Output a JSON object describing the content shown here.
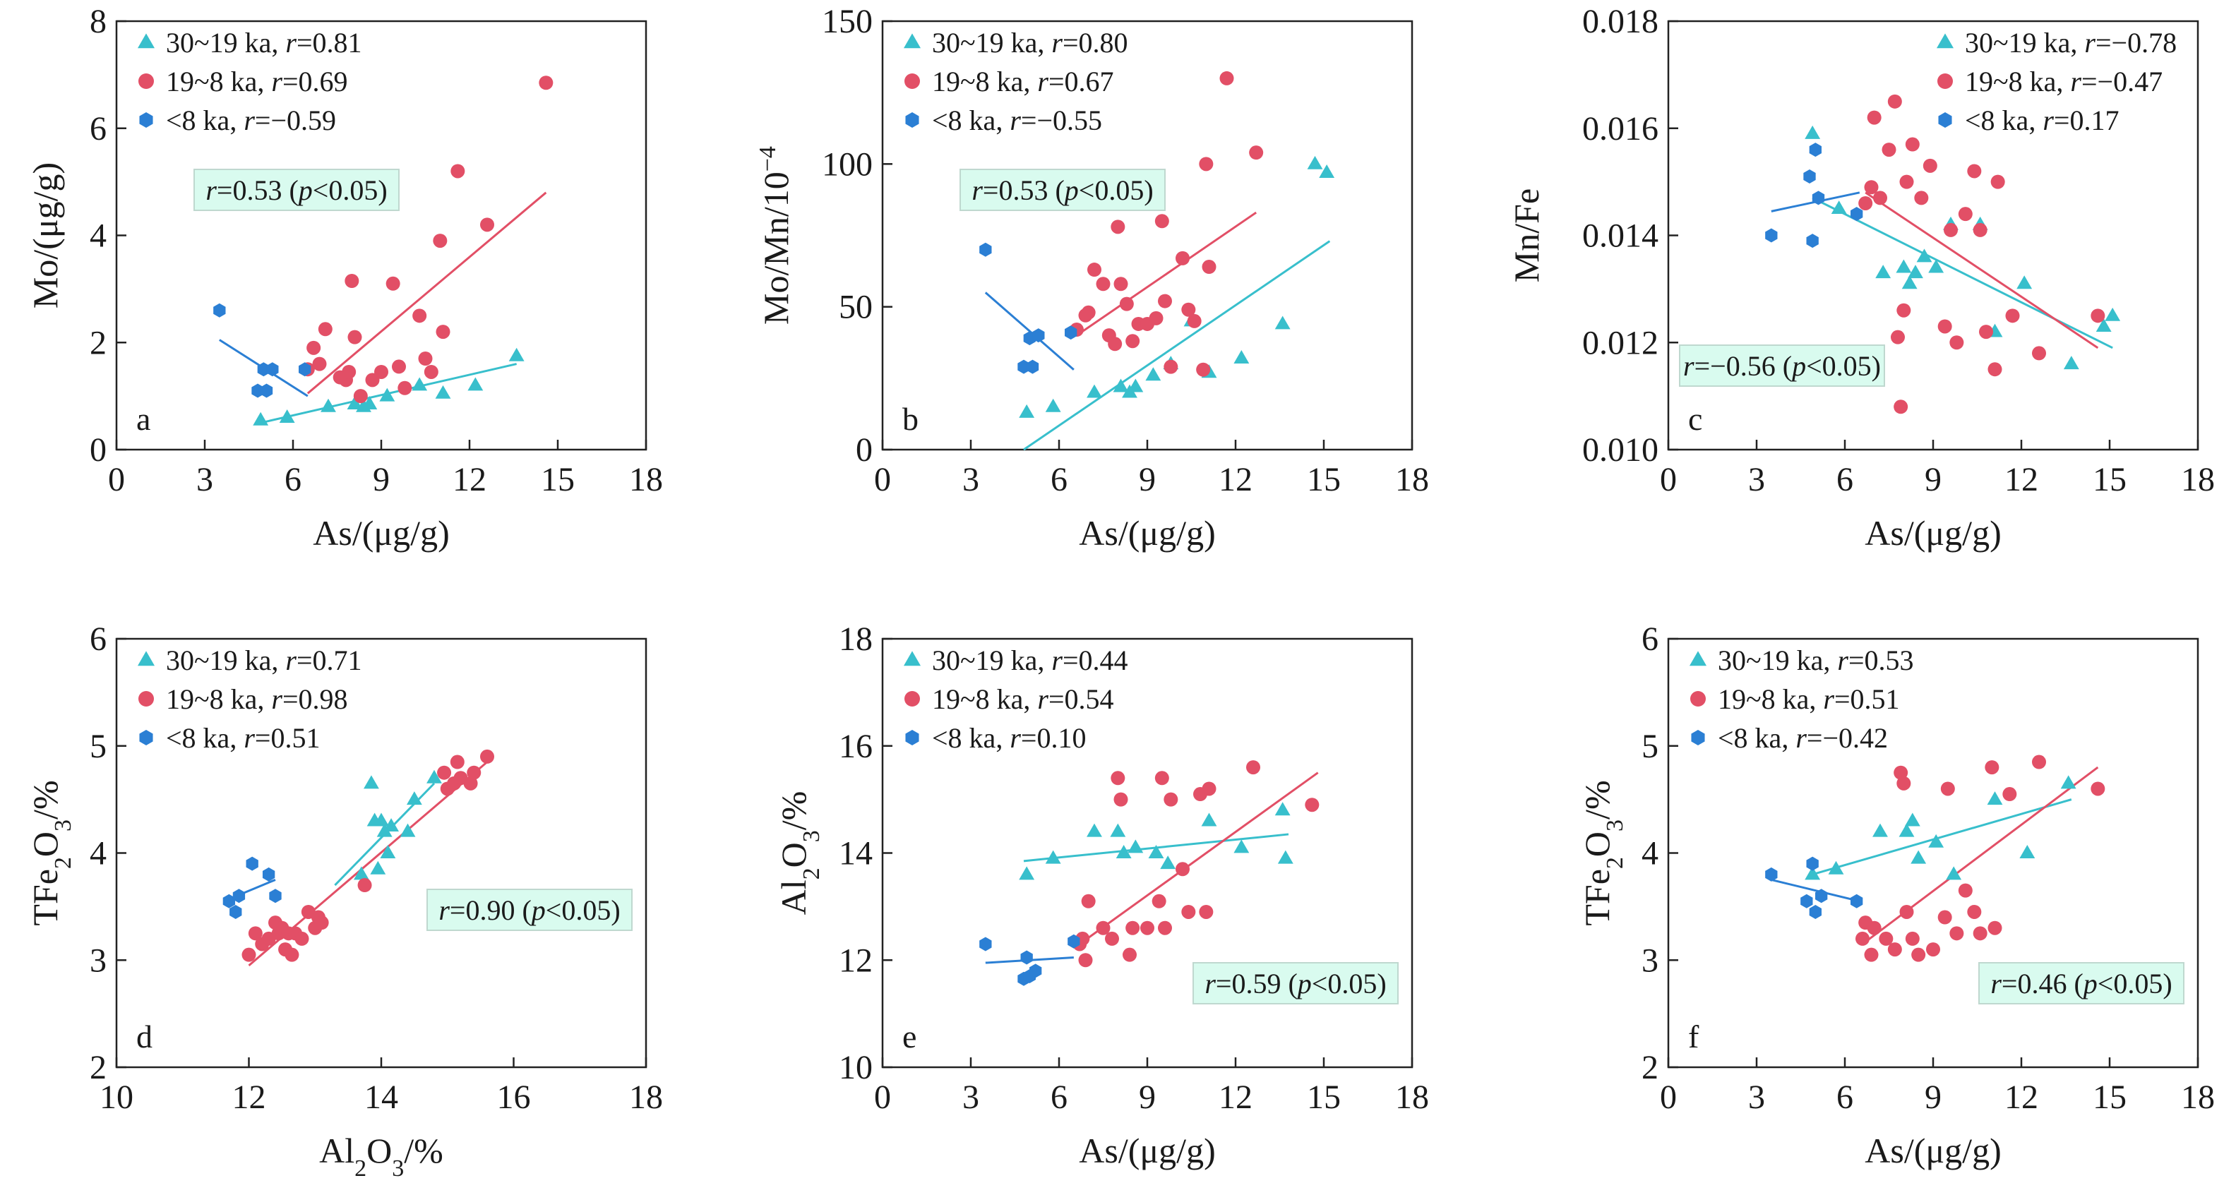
{
  "colors": {
    "c1": "#38bfcc",
    "c2": "#e24f66",
    "c3": "#2b7fd4",
    "frame": "#222222",
    "statbox_fill": "#d9fbef",
    "statbox_stroke": "#bfd8cf"
  },
  "chart_data": [
    {
      "type": "scatter",
      "panel": "a",
      "xlabel": "As/(μg/g)",
      "ylabel": "Mo/(μg/g)",
      "xlim": [
        0,
        18
      ],
      "ylim": [
        0,
        8
      ],
      "xticks": [
        0,
        3,
        6,
        9,
        12,
        15,
        18
      ],
      "yticks": [
        0,
        2,
        4,
        6,
        8
      ],
      "legend": {
        "position": "top-left"
      },
      "stat": {
        "r": "0.53",
        "p": "0.05",
        "box": "upper-left-center"
      },
      "series": [
        {
          "name": "30~19 ka",
          "r": "0.81",
          "marker": "triangle",
          "color": "#38bfcc",
          "x": [
            4.9,
            5.8,
            7.2,
            8.1,
            8.4,
            8.6,
            9.2,
            10.3,
            11.1,
            12.2,
            13.6
          ],
          "y": [
            0.55,
            0.6,
            0.8,
            0.85,
            0.8,
            0.85,
            1.0,
            1.2,
            1.05,
            1.2,
            1.75
          ],
          "fit": [
            [
              4.9,
              0.5
            ],
            [
              13.6,
              1.6
            ]
          ]
        },
        {
          "name": "19~8 ka",
          "r": "0.69",
          "marker": "circle",
          "color": "#e24f66",
          "x": [
            6.5,
            6.7,
            6.9,
            7.1,
            7.6,
            7.8,
            7.9,
            8.0,
            8.1,
            8.3,
            8.7,
            9.0,
            9.4,
            9.6,
            9.8,
            10.3,
            10.5,
            10.7,
            11.0,
            11.1,
            11.6,
            12.6,
            14.6
          ],
          "y": [
            1.5,
            1.9,
            1.6,
            2.25,
            1.35,
            1.3,
            1.45,
            3.15,
            2.1,
            1.0,
            1.3,
            1.45,
            3.1,
            1.55,
            1.15,
            2.5,
            1.7,
            1.45,
            3.9,
            2.2,
            5.2,
            4.2,
            6.85
          ],
          "fit": [
            [
              6.5,
              1.05
            ],
            [
              14.6,
              4.8
            ]
          ]
        },
        {
          "name": "<8 ka",
          "r": "−0.59",
          "marker": "hexagon",
          "color": "#2b7fd4",
          "x": [
            3.5,
            4.8,
            5.0,
            5.1,
            5.3,
            6.4
          ],
          "y": [
            2.6,
            1.1,
            1.5,
            1.1,
            1.5,
            1.5
          ],
          "fit": [
            [
              3.5,
              2.05
            ],
            [
              6.5,
              1.0
            ]
          ]
        }
      ]
    },
    {
      "type": "scatter",
      "panel": "b",
      "xlabel": "As/(μg/g)",
      "ylabel": "Mo/Mn/10⁻⁴",
      "xlim": [
        0,
        18
      ],
      "ylim": [
        0,
        150
      ],
      "xticks": [
        0,
        3,
        6,
        9,
        12,
        15,
        18
      ],
      "yticks": [
        0,
        50,
        100,
        150
      ],
      "legend": {
        "position": "top-left"
      },
      "stat": {
        "r": "0.53",
        "p": "0.05",
        "box": "upper-left-center"
      },
      "series": [
        {
          "name": "30~19 ka",
          "r": "0.80",
          "marker": "triangle",
          "color": "#38bfcc",
          "x": [
            4.9,
            5.8,
            7.2,
            8.1,
            8.4,
            8.6,
            9.2,
            9.8,
            10.5,
            11.1,
            12.2,
            13.6,
            14.7,
            15.1
          ],
          "y": [
            13,
            15,
            20,
            22,
            20,
            22,
            26,
            30,
            45,
            27,
            32,
            44,
            100,
            97
          ],
          "fit": [
            [
              4.8,
              0
            ],
            [
              15.2,
              73
            ]
          ]
        },
        {
          "name": "19~8 ka",
          "r": "0.67",
          "marker": "circle",
          "color": "#e24f66",
          "x": [
            6.6,
            6.9,
            7.0,
            7.2,
            7.5,
            7.7,
            7.9,
            8.0,
            8.1,
            8.3,
            8.5,
            8.7,
            9.0,
            9.3,
            9.5,
            9.6,
            9.8,
            10.2,
            10.4,
            10.6,
            10.9,
            11.0,
            11.1,
            11.7,
            12.7
          ],
          "y": [
            42,
            47,
            48,
            63,
            58,
            40,
            37,
            78,
            58,
            51,
            38,
            44,
            44,
            46,
            80,
            52,
            29,
            67,
            49,
            45,
            28,
            100,
            64,
            130,
            104
          ],
          "fit": [
            [
              6.6,
              40
            ],
            [
              12.7,
              83
            ]
          ]
        },
        {
          "name": "<8 ka",
          "r": "−0.55",
          "marker": "hexagon",
          "color": "#2b7fd4",
          "x": [
            3.5,
            4.8,
            5.0,
            5.1,
            5.3,
            6.4
          ],
          "y": [
            70,
            29,
            39,
            29,
            40,
            41
          ],
          "fit": [
            [
              3.5,
              55
            ],
            [
              6.5,
              28
            ]
          ]
        }
      ]
    },
    {
      "type": "scatter",
      "panel": "c",
      "xlabel": "As/(μg/g)",
      "ylabel": "Mn/Fe",
      "xlim": [
        0,
        18
      ],
      "ylim": [
        0.01,
        0.018
      ],
      "xticks": [
        0,
        3,
        6,
        9,
        12,
        15,
        18
      ],
      "yticks": [
        0.01,
        0.012,
        0.014,
        0.016,
        0.018
      ],
      "legend": {
        "position": "top-right"
      },
      "stat": {
        "r": "−0.56",
        "p": "0.05",
        "box": "lower-left"
      },
      "series": [
        {
          "name": "30~19 ka",
          "r": "−0.78",
          "marker": "triangle",
          "color": "#38bfcc",
          "x": [
            4.9,
            5.8,
            7.3,
            8.0,
            8.2,
            8.4,
            8.7,
            9.1,
            9.6,
            10.6,
            11.1,
            12.1,
            13.7,
            14.8,
            15.1
          ],
          "y": [
            0.0159,
            0.0145,
            0.0133,
            0.0134,
            0.0131,
            0.0133,
            0.0136,
            0.0134,
            0.0142,
            0.0142,
            0.0122,
            0.0131,
            0.0116,
            0.0123,
            0.0125
          ],
          "fit": [
            [
              4.9,
              0.0147
            ],
            [
              15.1,
              0.0119
            ]
          ]
        },
        {
          "name": "19~8 ka",
          "r": "−0.47",
          "marker": "circle",
          "color": "#e24f66",
          "x": [
            6.7,
            6.9,
            7.0,
            7.2,
            7.5,
            7.7,
            7.8,
            7.9,
            8.0,
            8.1,
            8.3,
            8.6,
            8.9,
            9.4,
            9.6,
            9.8,
            10.1,
            10.4,
            10.6,
            10.8,
            11.1,
            11.2,
            11.7,
            12.6,
            14.6
          ],
          "y": [
            0.0146,
            0.0149,
            0.0162,
            0.0147,
            0.0156,
            0.0165,
            0.0121,
            0.0108,
            0.0126,
            0.015,
            0.0157,
            0.0147,
            0.0153,
            0.0123,
            0.0141,
            0.012,
            0.0144,
            0.0152,
            0.0141,
            0.0122,
            0.0115,
            0.015,
            0.0125,
            0.0118,
            0.0125
          ],
          "fit": [
            [
              6.7,
              0.0148
            ],
            [
              14.6,
              0.0119
            ]
          ]
        },
        {
          "name": "<8 ka",
          "r": "0.17",
          "marker": "hexagon",
          "color": "#2b7fd4",
          "x": [
            3.5,
            4.8,
            4.9,
            5.0,
            5.1,
            6.4
          ],
          "y": [
            0.014,
            0.0151,
            0.0139,
            0.0156,
            0.0147,
            0.0144
          ],
          "fit": [
            [
              3.5,
              0.01445
            ],
            [
              6.5,
              0.0148
            ]
          ]
        }
      ]
    },
    {
      "type": "scatter",
      "panel": "d",
      "xlabel": "Al₂O₃/%",
      "ylabel": "TFe₂O₃/%",
      "xlim": [
        10,
        18
      ],
      "ylim": [
        2,
        6
      ],
      "xticks": [
        10,
        12,
        14,
        16,
        18
      ],
      "yticks": [
        2,
        3,
        4,
        5,
        6
      ],
      "legend": {
        "position": "top-left"
      },
      "stat": {
        "r": "0.90",
        "p": "0.05",
        "box": "middle-right"
      },
      "series": [
        {
          "name": "30~19 ka",
          "r": "0.71",
          "marker": "triangle",
          "color": "#38bfcc",
          "x": [
            13.7,
            13.85,
            13.9,
            13.95,
            14.0,
            14.05,
            14.1,
            14.15,
            14.4,
            14.5,
            14.8
          ],
          "y": [
            3.8,
            4.65,
            4.3,
            3.85,
            4.3,
            4.2,
            4.0,
            4.25,
            4.2,
            4.5,
            4.7
          ],
          "fit": [
            [
              13.3,
              3.7
            ],
            [
              14.8,
              4.65
            ]
          ]
        },
        {
          "name": "19~8 ka",
          "r": "0.98",
          "marker": "circle",
          "color": "#e24f66",
          "x": [
            12.0,
            12.1,
            12.2,
            12.3,
            12.4,
            12.45,
            12.5,
            12.55,
            12.6,
            12.65,
            12.7,
            12.8,
            12.9,
            13.0,
            13.05,
            13.1,
            13.75,
            14.95,
            15.0,
            15.1,
            15.15,
            15.2,
            15.35,
            15.4,
            15.6
          ],
          "y": [
            3.05,
            3.25,
            3.15,
            3.2,
            3.35,
            3.25,
            3.3,
            3.1,
            3.25,
            3.05,
            3.25,
            3.2,
            3.45,
            3.3,
            3.4,
            3.35,
            3.7,
            4.75,
            4.6,
            4.65,
            4.85,
            4.7,
            4.65,
            4.75,
            4.9
          ],
          "fit": [
            [
              12.0,
              2.95
            ],
            [
              15.6,
              4.85
            ]
          ]
        },
        {
          "name": "<8 ka",
          "r": "0.51",
          "marker": "hexagon",
          "color": "#2b7fd4",
          "x": [
            11.7,
            11.8,
            11.85,
            12.05,
            12.3,
            12.4
          ],
          "y": [
            3.55,
            3.45,
            3.6,
            3.9,
            3.8,
            3.6
          ],
          "fit": [
            [
              11.7,
              3.57
            ],
            [
              12.4,
              3.75
            ]
          ]
        }
      ]
    },
    {
      "type": "scatter",
      "panel": "e",
      "xlabel": "As/(μg/g)",
      "ylabel": "Al₂O₃/%",
      "xlim": [
        0,
        18
      ],
      "ylim": [
        10,
        18
      ],
      "xticks": [
        0,
        3,
        6,
        9,
        12,
        15,
        18
      ],
      "yticks": [
        10,
        12,
        14,
        16,
        18
      ],
      "legend": {
        "position": "top-left"
      },
      "stat": {
        "r": "0.59",
        "p": "0.05",
        "box": "lower-right"
      },
      "series": [
        {
          "name": "30~19 ka",
          "r": "0.44",
          "marker": "triangle",
          "color": "#38bfcc",
          "x": [
            4.9,
            5.8,
            7.2,
            8.0,
            8.2,
            8.6,
            9.3,
            9.7,
            11.1,
            12.2,
            13.6,
            13.7
          ],
          "y": [
            13.6,
            13.9,
            14.4,
            14.4,
            14.0,
            14.1,
            14.0,
            13.8,
            14.6,
            14.1,
            14.8,
            13.9
          ],
          "fit": [
            [
              4.8,
              13.85
            ],
            [
              13.8,
              14.35
            ]
          ]
        },
        {
          "name": "19~8 ka",
          "r": "0.54",
          "marker": "circle",
          "color": "#e24f66",
          "x": [
            6.7,
            6.8,
            6.9,
            7.0,
            7.5,
            7.8,
            8.0,
            8.1,
            8.4,
            8.5,
            9.0,
            9.4,
            9.5,
            9.6,
            9.8,
            10.2,
            10.4,
            10.8,
            11.0,
            11.1,
            12.6,
            14.6
          ],
          "y": [
            12.3,
            12.4,
            12.0,
            13.1,
            12.6,
            12.4,
            15.4,
            15.0,
            12.1,
            12.6,
            12.6,
            13.1,
            15.4,
            12.6,
            15.0,
            13.7,
            12.9,
            15.1,
            12.9,
            15.2,
            15.6,
            14.9
          ],
          "fit": [
            [
              6.7,
              12.3
            ],
            [
              14.8,
              15.5
            ]
          ]
        },
        {
          "name": "<8 ka",
          "r": "0.10",
          "marker": "hexagon",
          "color": "#2b7fd4",
          "x": [
            3.5,
            4.8,
            4.9,
            5.0,
            5.2,
            6.5
          ],
          "y": [
            12.3,
            11.65,
            12.05,
            11.7,
            11.8,
            12.35
          ],
          "fit": [
            [
              3.5,
              11.95
            ],
            [
              6.5,
              12.05
            ]
          ]
        }
      ]
    },
    {
      "type": "scatter",
      "panel": "f",
      "xlabel": "As/(μg/g)",
      "ylabel": "TFe₂O₃/%",
      "xlim": [
        0,
        18
      ],
      "ylim": [
        2,
        6
      ],
      "xticks": [
        0,
        3,
        6,
        9,
        12,
        15,
        18
      ],
      "yticks": [
        2,
        3,
        4,
        5,
        6
      ],
      "legend": {
        "position": "top-left"
      },
      "stat": {
        "r": "0.46",
        "p": "0.05",
        "box": "lower-right"
      },
      "series": [
        {
          "name": "30~19 ka",
          "r": "0.53",
          "marker": "triangle",
          "color": "#38bfcc",
          "x": [
            4.9,
            5.7,
            7.2,
            8.1,
            8.3,
            8.5,
            9.1,
            9.7,
            11.1,
            12.2,
            13.6
          ],
          "y": [
            3.8,
            3.85,
            4.2,
            4.2,
            4.3,
            3.95,
            4.1,
            3.8,
            4.5,
            4.0,
            4.65
          ],
          "fit": [
            [
              4.9,
              3.8
            ],
            [
              13.7,
              4.5
            ]
          ]
        },
        {
          "name": "19~8 ka",
          "r": "0.51",
          "marker": "circle",
          "color": "#e24f66",
          "x": [
            6.6,
            6.7,
            6.9,
            7.0,
            7.4,
            7.7,
            7.9,
            8.0,
            8.1,
            8.3,
            8.5,
            9.0,
            9.4,
            9.5,
            9.8,
            10.1,
            10.4,
            10.6,
            11.0,
            11.1,
            11.6,
            12.6,
            14.6
          ],
          "y": [
            3.2,
            3.35,
            3.05,
            3.3,
            3.2,
            3.1,
            4.75,
            4.65,
            3.45,
            3.2,
            3.05,
            3.1,
            3.4,
            4.6,
            3.25,
            3.65,
            3.45,
            3.25,
            4.8,
            3.3,
            4.55,
            4.85,
            4.6
          ],
          "fit": [
            [
              6.6,
              3.15
            ],
            [
              14.6,
              4.8
            ]
          ]
        },
        {
          "name": "<8 ka",
          "r": "−0.42",
          "marker": "hexagon",
          "color": "#2b7fd4",
          "x": [
            3.5,
            4.7,
            4.9,
            5.0,
            5.2,
            6.4
          ],
          "y": [
            3.8,
            3.55,
            3.9,
            3.45,
            3.6,
            3.55
          ],
          "fit": [
            [
              3.5,
              3.75
            ],
            [
              6.5,
              3.55
            ]
          ]
        }
      ]
    }
  ]
}
